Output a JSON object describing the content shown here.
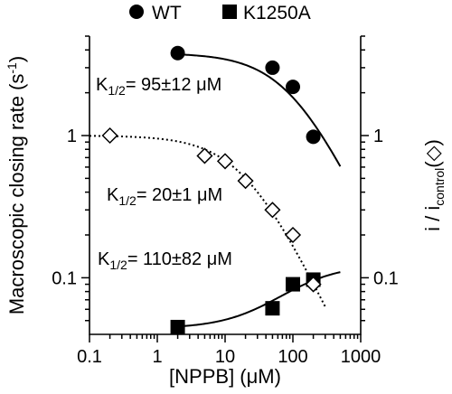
{
  "chart_data": {
    "type": "scatter",
    "x_scale": "log",
    "y_scale": "log",
    "xlim": [
      0.1,
      1000
    ],
    "ylim": [
      0.04,
      5
    ],
    "x_ticks": [
      0.1,
      1,
      10,
      100,
      1000
    ],
    "x_tick_labels": [
      "0.1",
      "1",
      "10",
      "100",
      "1000"
    ],
    "y_ticks": [
      0.1,
      1
    ],
    "y_tick_labels": [
      "0.1",
      "1"
    ],
    "y2_tick_labels": [
      "0.1",
      "1"
    ],
    "xlabel": "[NPPB] (μM)",
    "ylabel_left": "Macroscopic closing rate (s",
    "ylabel_left_sup": "-1",
    "ylabel_left_end": ")",
    "ylabel_right": "i / i",
    "ylabel_right_sub": "control",
    "ylabel_right_symbol": "(◇)",
    "legend_position": "top",
    "legend": [
      {
        "label": "WT",
        "marker": "circle"
      },
      {
        "label": "K1250A",
        "marker": "square"
      }
    ],
    "series": [
      {
        "name": "WT",
        "marker": "circle",
        "points": [
          [
            2,
            3.8
          ],
          [
            50,
            3.0
          ],
          [
            100,
            2.2
          ],
          [
            200,
            0.98
          ]
        ],
        "fit": {
          "type": "hill-decrease",
          "top": 3.8,
          "k_half": 95,
          "x_range": [
            2,
            500
          ]
        }
      },
      {
        "name": "K1250A",
        "marker": "square",
        "points": [
          [
            2,
            0.045
          ],
          [
            50,
            0.061
          ],
          [
            100,
            0.09
          ],
          [
            200,
            0.097
          ]
        ],
        "fit": {
          "type": "hill-increase",
          "base": 0.044,
          "rise": 0.08,
          "k_half": 110,
          "x_range": [
            2,
            500
          ]
        }
      },
      {
        "name": "i / icontrol",
        "marker": "diamond-open",
        "points": [
          [
            0.2,
            1.0
          ],
          [
            5,
            0.72
          ],
          [
            10,
            0.66
          ],
          [
            20,
            0.48
          ],
          [
            50,
            0.3
          ],
          [
            100,
            0.2
          ],
          [
            200,
            0.09
          ]
        ],
        "fit": {
          "type": "hill-decrease",
          "top": 1.0,
          "k_half": 20,
          "x_range": [
            0.1,
            300
          ],
          "style": "dotted"
        }
      }
    ],
    "annotations": [
      {
        "prefix": "K",
        "sub": "1/2",
        "text": "= 95±12 μM"
      },
      {
        "prefix": "K",
        "sub": "1/2",
        "text": "= 20±1 μM"
      },
      {
        "prefix": "K",
        "sub": "1/2",
        "text": "= 110±82 μM"
      }
    ]
  }
}
